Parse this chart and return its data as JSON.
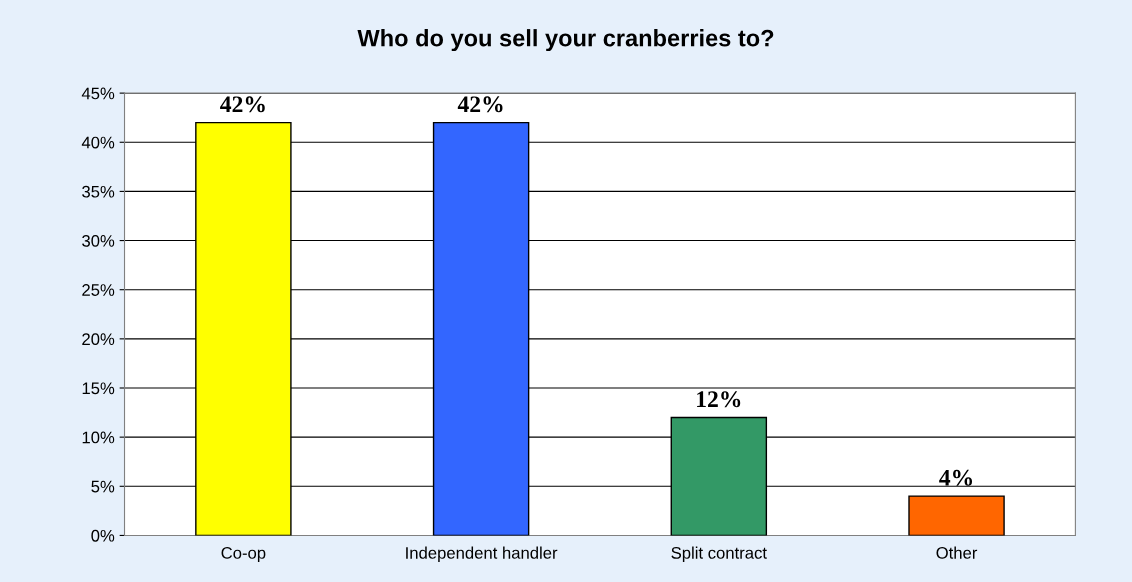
{
  "chart_data": {
    "type": "bar",
    "title": "Who do you sell your cranberries to?",
    "categories": [
      "Co-op",
      "Independent handler",
      "Split contract",
      "Other"
    ],
    "values": [
      42,
      42,
      12,
      4
    ],
    "colors": [
      "#ffff00",
      "#3366ff",
      "#339966",
      "#ff6600"
    ],
    "value_labels": [
      "42%",
      "42%",
      "12%",
      "4%"
    ],
    "ylim": [
      0,
      45
    ],
    "yticks": [
      {
        "value": 0,
        "label": "0%"
      },
      {
        "value": 5,
        "label": "5%"
      },
      {
        "value": 10,
        "label": "10%"
      },
      {
        "value": 15,
        "label": "15%"
      },
      {
        "value": 20,
        "label": "20%"
      },
      {
        "value": 25,
        "label": "25%"
      },
      {
        "value": 30,
        "label": "30%"
      },
      {
        "value": 35,
        "label": "35%"
      },
      {
        "value": 40,
        "label": "40%"
      },
      {
        "value": 45,
        "label": "45%"
      }
    ],
    "grid": "y",
    "legend": false
  }
}
